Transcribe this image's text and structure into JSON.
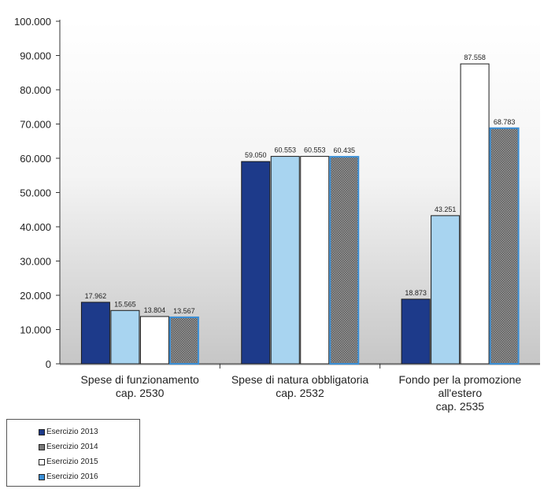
{
  "chart_data": {
    "type": "bar",
    "categories": [
      [
        "Spese di funzionamento",
        "cap. 2530"
      ],
      [
        "Spese di natura obbligatoria",
        "cap. 2532"
      ],
      [
        "Fondo per la promozione",
        "all'estero",
        "cap. 2535"
      ]
    ],
    "series": [
      {
        "name": "Esercizio 2013",
        "color": "#1d3a8a",
        "pattern": "solid",
        "values": [
          17962,
          59050,
          18873
        ],
        "labels": [
          "17.962",
          "59.050",
          "18.873"
        ]
      },
      {
        "name": "Esercizio 2014",
        "color": "#a8d4f0",
        "pattern": "solid",
        "values": [
          15565,
          60553,
          43251
        ],
        "labels": [
          "15.565",
          "60.553",
          "43.251"
        ]
      },
      {
        "name": "Esercizio 2015",
        "color": "#ffffff",
        "pattern": "solid",
        "values": [
          13804,
          60553,
          87558
        ],
        "labels": [
          "13.804",
          "60.553",
          "87.558"
        ]
      },
      {
        "name": "Esercizio 2016",
        "color": "#7a7a7a",
        "border": "#3b8fd6",
        "pattern": "checker",
        "values": [
          13567,
          60435,
          68783
        ],
        "labels": [
          "13.567",
          "60.435",
          "68.783"
        ]
      }
    ],
    "y_ticks": [
      "0",
      "10.000",
      "20.000",
      "30.000",
      "40.000",
      "50.000",
      "60.000",
      "70.000",
      "80.000",
      "90.000",
      "100.000"
    ],
    "ylim": [
      0,
      100000
    ],
    "y_step": 10000,
    "legend": {
      "placement": "bottom-left",
      "entries": [
        {
          "label": "Esercizio 2013",
          "swatch": "#1d3a8a"
        },
        {
          "label": "Esercizio 2014",
          "swatch": "#7a7a7a"
        },
        {
          "label": "Esercizio 2015",
          "swatch": "#ffffff"
        },
        {
          "label": "Esercizio 2016",
          "swatch": "#3b8fd6"
        }
      ]
    },
    "grid": false
  }
}
